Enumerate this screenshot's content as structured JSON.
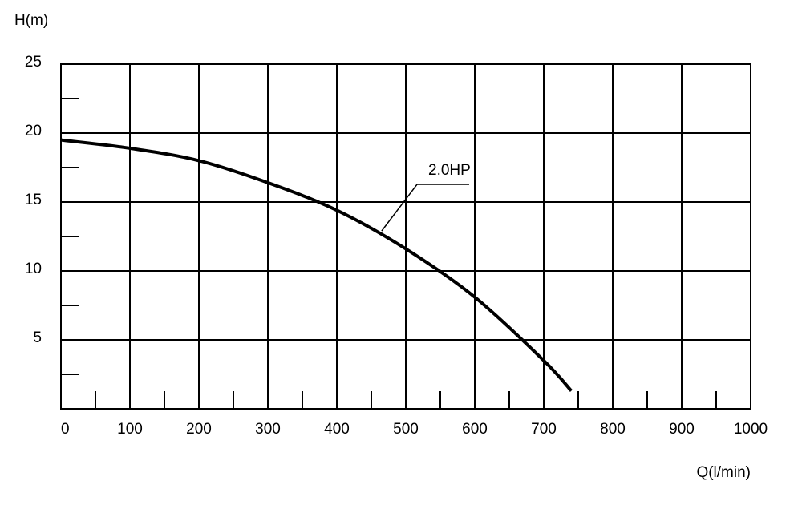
{
  "chart_data": {
    "type": "line",
    "y_label": "H(m)",
    "x_label": "Q(l/min)",
    "xlim": [
      0,
      1000
    ],
    "xticks": [
      0,
      100,
      200,
      300,
      400,
      500,
      600,
      700,
      800,
      900,
      1000
    ],
    "xminorticks": [
      50,
      150,
      250,
      350,
      450,
      550,
      650,
      750,
      850,
      950
    ],
    "ylim": [
      0,
      25
    ],
    "yticks": [
      5,
      10,
      15,
      20,
      25
    ],
    "yminorticks": [
      2.5,
      7.5,
      12.5,
      17.5,
      22.5
    ],
    "grid": true,
    "series": [
      {
        "name": "2.0HP",
        "color": "#000000",
        "x": [
          0,
          100,
          200,
          300,
          400,
          500,
          600,
          700,
          740
        ],
        "values": [
          19.5,
          18.9,
          18.0,
          16.4,
          14.4,
          11.6,
          8.1,
          3.5,
          1.3
        ]
      }
    ]
  }
}
